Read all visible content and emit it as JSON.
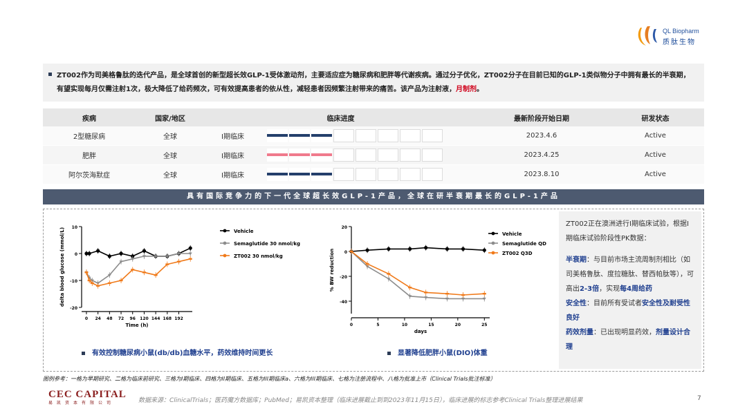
{
  "logo": {
    "en": "QL Biopharm",
    "cn": "质肽生物"
  },
  "intro": {
    "text": "ZT002作为司美格鲁肽的迭代产品，是全球首创的新型超长效GLP-1受体激动剂，主要适应症为糖尿病和肥胖等代谢疾病。通过分子优化，ZT002分子在目前已知的GLP-1类似物分子中拥有最长的半衰期，有望实现每月仅需注射1次，极大降低了给药频次，可有效提高患者的依从性，减轻患者因频繁注射带来的痛苦。该产品为注射液，",
    "highlight": "月制剂",
    "end": "。"
  },
  "table": {
    "headers": [
      "疾病",
      "国家/地区",
      "临床进度",
      "最新阶段开始日期",
      "研发状态"
    ],
    "rows": [
      {
        "disease": "2型糖尿病",
        "region": "全球",
        "phase": "I期临床",
        "date": "2023.4.6",
        "status": "Active",
        "color": "#243f6b",
        "filled": 3
      },
      {
        "disease": "肥胖",
        "region": "全球",
        "phase": "I期临床",
        "date": "2023.4.25",
        "status": "Active",
        "color": "#f07a8c",
        "filled": 3
      },
      {
        "disease": "阿尔茨海默症",
        "region": "全球",
        "phase": "I期临床",
        "date": "2023.8.10",
        "status": "Active",
        "color": "#243f6b",
        "filled": 3
      }
    ],
    "segments": 8
  },
  "banner": "具有国际竞争力的下一代全球超长效GLP-1产品，全球在研半衰期最长的GLP-1产品",
  "chart_data": [
    {
      "type": "line",
      "xlabel": "Time (h)",
      "ylabel": "delta blood glucose (mmol/L)",
      "x_ticks": [
        "0",
        "24",
        "48",
        "72",
        "96",
        "120",
        "144",
        "168",
        "192"
      ],
      "ylim": [
        -20,
        10
      ],
      "y_ticks": [
        "10",
        "0",
        "-10",
        "-20"
      ],
      "series": [
        {
          "name": "Vehicle",
          "color": "#000000",
          "x": [
            0,
            6,
            24,
            48,
            72,
            96,
            120,
            144,
            168,
            192,
            216
          ],
          "y": [
            0,
            0,
            1,
            -1,
            0,
            -1,
            1,
            -1,
            -1,
            0,
            2
          ]
        },
        {
          "name": "Semaglutide 30 nmol/kg",
          "color": "#8c8c8c",
          "x": [
            0,
            6,
            12,
            24,
            48,
            72,
            96,
            120,
            144,
            168,
            192,
            216
          ],
          "y": [
            -7,
            -9,
            -10,
            -11,
            -8,
            -3,
            -2,
            -1,
            -1,
            -1,
            0,
            0
          ]
        },
        {
          "name": "ZT002 30 nmol/kg",
          "color": "#f07a1a",
          "x": [
            0,
            6,
            12,
            24,
            48,
            72,
            96,
            120,
            144,
            168,
            192,
            216
          ],
          "y": [
            -7,
            -10,
            -11,
            -12,
            -11,
            -10,
            -6,
            -7,
            -8,
            -4,
            -3,
            -2
          ]
        }
      ]
    },
    {
      "type": "line",
      "xlabel": "days",
      "ylabel": "% BW reduction",
      "x_ticks": [
        "0",
        "5",
        "10",
        "15",
        "20",
        "25"
      ],
      "ylim": [
        -50,
        20
      ],
      "y_ticks": [
        "20",
        "0",
        "-20",
        "-40"
      ],
      "series": [
        {
          "name": "Vehicle",
          "color": "#000000",
          "x": [
            0,
            3,
            7,
            11,
            14,
            18,
            21,
            25
          ],
          "y": [
            0,
            1,
            2,
            2,
            3,
            2,
            2,
            1
          ]
        },
        {
          "name": "Semaglutide QD",
          "color": "#8c8c8c",
          "x": [
            0,
            3,
            7,
            11,
            14,
            18,
            21,
            25
          ],
          "y": [
            0,
            -12,
            -22,
            -36,
            -37,
            -38,
            -38,
            -38
          ]
        },
        {
          "name": "ZT002 Q3D",
          "color": "#f07a1a",
          "x": [
            0,
            3,
            7,
            11,
            14,
            18,
            21,
            25
          ],
          "y": [
            0,
            -10,
            -18,
            -29,
            -33,
            -34,
            -35,
            -34
          ]
        }
      ]
    }
  ],
  "captions": [
    "有效控制糖尿病小鼠(db/db)血糖水平，药效维持时间更长",
    "显著降低肥胖小鼠(DIO)体重"
  ],
  "side": {
    "p1": "ZT002正在澳洲进行I期临床试验，根据I期临床试验阶段性PK数据：",
    "h2": "半衰期",
    "p2a": "：与目前市场主流周制剂相比（如司美格鲁肽、度拉糖肽、替西帕肽等），可高出",
    "p2b": "2-3倍",
    "p2c": "，实现",
    "p2d": "每4周给药",
    "h3": "安全性",
    "p3a": "：目前所有受试者",
    "p3b": "安全性及耐受性良好",
    "h4": "药效剂量",
    "p4a": "：已出现明显药效，",
    "p4b": "剂量设计合理"
  },
  "footer": {
    "legend": "图例参考：一格为早期研究、二格为临床前研究、三格为I期临床、四格为II期临床、五格为III期临床a、六格为III期临床、七格为注册流程中、八格为批准上市（Clinical Trials批注标准）",
    "cec": "CEC CAPITAL",
    "cec_cn": "易凯资本有限公司",
    "source": "数据来源：ClinicalTrials；医药魔方数据库；PubMed；易凯资本整理（临床进展截止到到2023年11月15日），临床进展的标志参考Clinical Trials整理进展结果",
    "page": "7"
  }
}
